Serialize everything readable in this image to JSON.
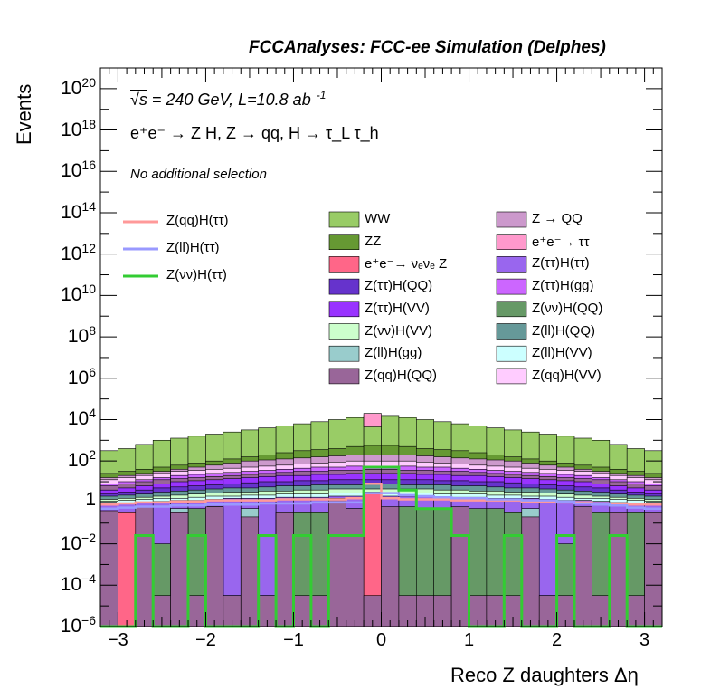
{
  "header": "FCCAnalyses: FCC-ee Simulation (Delphes)",
  "annotations": {
    "energy_sqrt": "√s",
    "energy_rest": " = 240 GeV, L=10.8 ab",
    "lumi_exp": "-1",
    "process": "e⁺e⁻ → Z H, Z → qq, H → τ_L τ_h",
    "selection": "No additional selection"
  },
  "colors": {
    "WW": "#99cc66",
    "ZZ": "#669933",
    "Zqq": "#cc99cc",
    "tautau": "#ff99cc",
    "nunuZ": "#ff6688",
    "ZtautauHtautau": "#9966ee",
    "ZtautauHQQ": "#6633cc",
    "ZtautauHgg": "#cc66ff",
    "ZtautauHVV": "#9933ff",
    "ZnunuHQQ": "#669966",
    "ZnunuHVV": "#ccffcc",
    "ZllHQQ": "#669999",
    "ZllHgg": "#99cccc",
    "ZllHVV": "#ccffff",
    "ZqqHQQ": "#996699",
    "ZqqHVV": "#ffccff",
    "sig_qq": "#ff9999",
    "sig_ll": "#9999ff",
    "sig_nunu": "#33cc33"
  },
  "chart_data": {
    "type": "histogram",
    "title": "FCCAnalyses: FCC-ee Simulation (Delphes)",
    "xlabel": "Reco Z daughters Δη",
    "ylabel": "Events",
    "xlim": [
      -3.2,
      3.2
    ],
    "ylim": [
      1e-06,
      1e+21
    ],
    "yscale": "log",
    "x_ticks": [
      "−3",
      "−2",
      "−1",
      "0",
      "1",
      "2",
      "3"
    ],
    "y_ticks": [
      {
        "base": "10",
        "exp": "−6"
      },
      {
        "base": "10",
        "exp": "−4"
      },
      {
        "base": "10",
        "exp": "−2"
      },
      {
        "base": "1",
        "exp": ""
      },
      {
        "base": "10",
        "exp": "2"
      },
      {
        "base": "10",
        "exp": "4"
      },
      {
        "base": "10",
        "exp": "6"
      },
      {
        "base": "10",
        "exp": "8"
      },
      {
        "base": "10",
        "exp": "10"
      },
      {
        "base": "10",
        "exp": "12"
      },
      {
        "base": "10",
        "exp": "14"
      },
      {
        "base": "10",
        "exp": "16"
      },
      {
        "base": "10",
        "exp": "18"
      },
      {
        "base": "10",
        "exp": "20"
      }
    ],
    "bins": 32,
    "bin_range": [
      -3.2,
      3.2
    ],
    "legend_background": [
      {
        "label": "WW",
        "key": "WW"
      },
      {
        "label": "Z → QQ",
        "key": "Zqq"
      },
      {
        "label": "ZZ",
        "key": "ZZ"
      },
      {
        "label": "e⁺e⁻→ ττ",
        "key": "tautau"
      },
      {
        "label": "e⁺e⁻→ νₑνₑ Z",
        "key": "nunuZ"
      },
      {
        "label": "Z(ττ)H(ττ)",
        "key": "ZtautauHtautau"
      },
      {
        "label": "Z(ττ)H(QQ)",
        "key": "ZtautauHQQ"
      },
      {
        "label": "Z(ττ)H(gg)",
        "key": "ZtautauHgg"
      },
      {
        "label": "Z(ττ)H(VV)",
        "key": "ZtautauHVV"
      },
      {
        "label": "Z(νν)H(QQ)",
        "key": "ZnunuHQQ"
      },
      {
        "label": "Z(νν)H(VV)",
        "key": "ZnunuHVV"
      },
      {
        "label": "Z(ll)H(QQ)",
        "key": "ZllHQQ"
      },
      {
        "label": "Z(ll)H(gg)",
        "key": "ZllHgg"
      },
      {
        "label": "Z(ll)H(VV)",
        "key": "ZllHVV"
      },
      {
        "label": "Z(qq)H(QQ)",
        "key": "ZqqHQQ"
      },
      {
        "label": "Z(qq)H(VV)",
        "key": "ZqqHVV"
      }
    ],
    "legend_signal": [
      {
        "label": "Z(qq)H(ττ)",
        "key": "sig_qq"
      },
      {
        "label": "Z(ll)H(ττ)",
        "key": "sig_ll"
      },
      {
        "label": "Z(νν)H(ττ)",
        "key": "sig_nunu"
      }
    ],
    "stack_envelopes_log10": {
      "WW": [
        2.5,
        2.6,
        2.8,
        3.0,
        3.1,
        3.2,
        3.3,
        3.4,
        3.5,
        3.6,
        3.7,
        3.8,
        3.9,
        4.0,
        4.1,
        4.2,
        4.2,
        4.1,
        4.0,
        3.9,
        3.8,
        3.7,
        3.6,
        3.5,
        3.4,
        3.3,
        3.2,
        3.1,
        3.0,
        2.8,
        2.6,
        2.5
      ],
      "ZZ": [
        1.4,
        1.5,
        1.6,
        1.7,
        1.8,
        1.9,
        2.0,
        2.1,
        2.2,
        2.3,
        2.4,
        2.5,
        2.55,
        2.6,
        2.7,
        2.75,
        2.75,
        2.7,
        2.6,
        2.55,
        2.5,
        2.4,
        2.3,
        2.2,
        2.1,
        2.0,
        1.9,
        1.8,
        1.7,
        1.6,
        1.5,
        1.4
      ],
      "Zqq": [
        1.2,
        1.3,
        1.4,
        1.5,
        1.6,
        1.7,
        1.8,
        1.9,
        2.0,
        2.05,
        2.1,
        2.15,
        2.2,
        2.25,
        2.3,
        2.3,
        2.3,
        2.3,
        2.25,
        2.2,
        2.15,
        2.1,
        2.05,
        2.0,
        1.9,
        1.8,
        1.7,
        1.6,
        1.5,
        1.4,
        1.3,
        1.2
      ],
      "ZqqHVV": [
        1.1,
        1.2,
        1.3,
        1.4,
        1.5,
        1.55,
        1.6,
        1.65,
        1.7,
        1.75,
        1.8,
        1.85,
        1.9,
        1.95,
        2.0,
        2.0,
        2.0,
        2.0,
        1.95,
        1.9,
        1.85,
        1.8,
        1.75,
        1.7,
        1.65,
        1.6,
        1.55,
        1.5,
        1.4,
        1.3,
        1.2,
        1.1
      ],
      "ZtautauHgg": [
        0.9,
        1.0,
        1.1,
        1.2,
        1.3,
        1.35,
        1.4,
        1.45,
        1.5,
        1.55,
        1.6,
        1.65,
        1.7,
        1.7,
        1.75,
        1.75,
        1.75,
        1.75,
        1.7,
        1.7,
        1.65,
        1.6,
        1.55,
        1.5,
        1.45,
        1.4,
        1.35,
        1.3,
        1.2,
        1.1,
        1.0,
        0.9
      ],
      "ZqqHQQ_hi": [
        0.8,
        0.9,
        1.0,
        1.1,
        1.15,
        1.2,
        1.25,
        1.3,
        1.35,
        1.4,
        1.45,
        1.5,
        1.5,
        1.55,
        1.55,
        1.6,
        1.6,
        1.55,
        1.55,
        1.5,
        1.5,
        1.45,
        1.4,
        1.35,
        1.3,
        1.25,
        1.2,
        1.15,
        1.1,
        1.0,
        0.9,
        0.8
      ],
      "ZtautauHVV": [
        0.6,
        0.7,
        0.8,
        0.9,
        1.0,
        1.05,
        1.1,
        1.15,
        1.2,
        1.25,
        1.3,
        1.3,
        1.35,
        1.35,
        1.4,
        1.4,
        1.4,
        1.4,
        1.35,
        1.35,
        1.3,
        1.3,
        1.25,
        1.2,
        1.15,
        1.1,
        1.05,
        1.0,
        0.9,
        0.8,
        0.7,
        0.6
      ],
      "ZtautauHQQ": [
        0.4,
        0.5,
        0.6,
        0.7,
        0.75,
        0.8,
        0.85,
        0.9,
        0.95,
        1.0,
        1.0,
        1.05,
        1.05,
        1.1,
        1.1,
        1.1,
        1.1,
        1.1,
        1.1,
        1.05,
        1.05,
        1.0,
        1.0,
        0.95,
        0.9,
        0.85,
        0.8,
        0.75,
        0.7,
        0.6,
        0.5,
        0.4
      ],
      "ZllHQQ": [
        0.3,
        0.35,
        0.4,
        0.5,
        0.55,
        0.6,
        0.65,
        0.7,
        0.7,
        0.75,
        0.8,
        0.8,
        0.85,
        0.85,
        0.85,
        0.9,
        0.9,
        0.85,
        0.85,
        0.85,
        0.8,
        0.8,
        0.75,
        0.7,
        0.7,
        0.65,
        0.6,
        0.55,
        0.5,
        0.4,
        0.35,
        0.3
      ],
      "ZnunuHVV": [
        0.15,
        0.2,
        0.25,
        0.3,
        0.35,
        0.4,
        0.45,
        0.5,
        0.5,
        0.55,
        0.55,
        0.6,
        0.6,
        0.65,
        0.65,
        0.65,
        0.65,
        0.65,
        0.65,
        0.6,
        0.6,
        0.55,
        0.55,
        0.5,
        0.5,
        0.45,
        0.4,
        0.35,
        0.3,
        0.25,
        0.2,
        0.15
      ],
      "ZllHVV": [
        0.05,
        0.1,
        0.15,
        0.2,
        0.2,
        0.25,
        0.3,
        0.3,
        0.35,
        0.35,
        0.4,
        0.4,
        0.4,
        0.45,
        0.45,
        0.45,
        0.45,
        0.45,
        0.45,
        0.4,
        0.4,
        0.4,
        0.35,
        0.35,
        0.3,
        0.3,
        0.25,
        0.2,
        0.2,
        0.15,
        0.1,
        0.05
      ],
      "ZtautauHtautau": [
        -0.1,
        -0.05,
        0.0,
        0.05,
        0.1,
        0.1,
        0.15,
        0.2,
        0.2,
        0.2,
        0.25,
        0.25,
        0.25,
        0.3,
        0.3,
        0.3,
        0.3,
        0.3,
        0.3,
        0.25,
        0.25,
        0.25,
        0.2,
        0.2,
        0.2,
        0.15,
        0.1,
        0.1,
        0.05,
        0.0,
        -0.05,
        -0.1
      ],
      "ZnunuHQQ": [
        -4.5,
        -4.5,
        -0.5,
        -2.0,
        -4.5,
        -0.3,
        -0.3,
        -4.5,
        -1.0,
        -4.5,
        -0.5,
        -0.5,
        -0.5,
        -0.3,
        -0.3,
        -0.3,
        -0.3,
        -0.2,
        -0.3,
        -0.3,
        -0.3,
        -0.3,
        -0.3,
        -0.5,
        -0.5,
        -4.5,
        -2.0,
        -2.0,
        -0.5,
        -0.5,
        -0.5,
        -0.5
      ],
      "ZllHgg": [
        -6.0,
        -6.0,
        -6.0,
        -6.0,
        -0.3,
        -6.0,
        -0.2,
        -6.0,
        -0.3,
        -6.0,
        -6.0,
        -6.0,
        -6.0,
        -6.0,
        -6.0,
        -6.0,
        -6.0,
        -6.0,
        -6.0,
        -6.0,
        -6.0,
        -6.0,
        -6.0,
        -6.0,
        -0.3,
        -6.0,
        -6.0,
        -6.0,
        -6.0,
        -6.0,
        -6.0,
        -6.0
      ],
      "nunuZ": [
        -6.0,
        -0.5,
        -6.0,
        -6.0,
        -6.0,
        -6.0,
        -6.0,
        -6.0,
        -6.0,
        -6.0,
        -6.0,
        -6.0,
        -6.0,
        -6.0,
        -6.0,
        0.5,
        -6.0,
        -6.0,
        -6.0,
        -6.0,
        -6.0,
        -6.0,
        -6.0,
        -6.0,
        -6.0,
        -6.0,
        -6.0,
        -6.0,
        -6.0,
        -6.0,
        -6.0,
        -6.0
      ],
      "ZqqHQQ_lo": [
        -0.4,
        -6.0,
        -0.2,
        -4.5,
        -0.5,
        -4.5,
        -0.2,
        -4.5,
        -0.7,
        -4.5,
        -0.5,
        -4.5,
        -4.5,
        0.2,
        -0.3,
        -4.5,
        -0.2,
        -4.5,
        -4.5,
        -4.5,
        -0.2,
        -4.5,
        -4.5,
        -4.5,
        -0.7,
        -4.5,
        -4.5,
        -0.2,
        -4.5,
        -0.5,
        -4.5,
        -0.5
      ]
    },
    "tautau_spike": {
      "bin": 15,
      "log10": 4.3
    },
    "signal_lines_log10": {
      "sig_qq": [
        -0.1,
        -0.05,
        0.0,
        0.0,
        0.05,
        0.05,
        0.1,
        0.1,
        0.1,
        0.1,
        0.15,
        0.15,
        0.15,
        0.15,
        0.2,
        0.9,
        0.2,
        0.15,
        0.15,
        0.15,
        0.1,
        0.1,
        0.1,
        0.1,
        0.05,
        0.05,
        0.0,
        0.0,
        -0.05,
        -0.05,
        -0.1,
        -0.1
      ],
      "sig_ll": [
        -0.3,
        -0.25,
        -0.2,
        -0.2,
        -0.15,
        -0.15,
        -0.1,
        -0.1,
        -0.1,
        -0.05,
        -0.05,
        -0.05,
        0.0,
        0.0,
        0.0,
        0.45,
        0.45,
        0.35,
        0.3,
        0.25,
        0.2,
        0.2,
        0.15,
        0.15,
        0.1,
        0.1,
        0.05,
        -0.05,
        -0.1,
        -0.15,
        -0.25,
        -0.3
      ],
      "sig_nunu": [
        -6,
        -6,
        -1.6,
        -6,
        -6,
        -1.6,
        -6,
        -6,
        -6,
        -1.6,
        -6,
        -1.6,
        -6,
        -1.6,
        -1.6,
        1.7,
        1.7,
        0.6,
        -0.3,
        -0.3,
        -1.6,
        -6,
        -6,
        -1.6,
        -6,
        -6,
        -1.6,
        -6,
        -6,
        -1.6,
        -6,
        -6
      ]
    }
  }
}
